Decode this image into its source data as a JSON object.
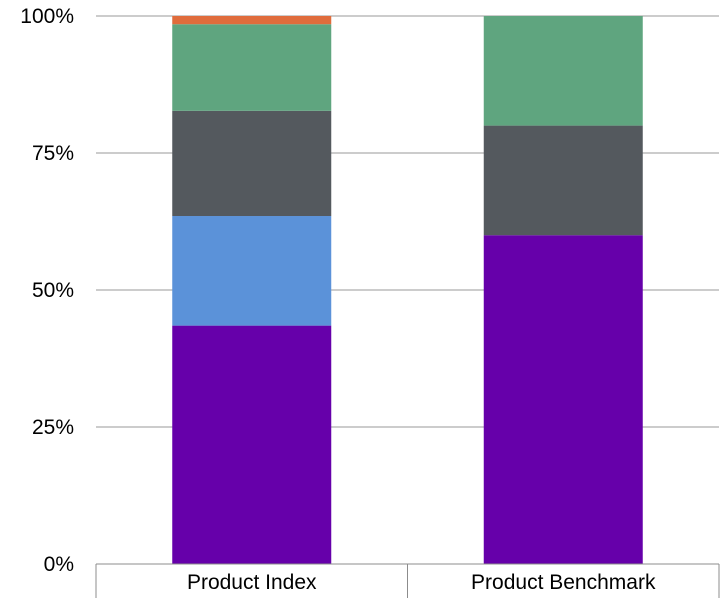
{
  "chart_data": {
    "type": "bar",
    "stacked": true,
    "categories": [
      "Product Index",
      "Product Benchmark"
    ],
    "series": [
      {
        "color": "#6600aa",
        "values": [
          43.5,
          60.0
        ]
      },
      {
        "color": "#5b92d9",
        "values": [
          20.0,
          0
        ]
      },
      {
        "color": "#54595e",
        "values": [
          19.2,
          20.0
        ]
      },
      {
        "color": "#5fa57f",
        "values": [
          15.8,
          20.0
        ]
      },
      {
        "color": "#e06c3c",
        "values": [
          1.5,
          0
        ]
      }
    ],
    "ylim": [
      0,
      100
    ],
    "yticks": [
      "0%",
      "25%",
      "50%",
      "75%",
      "100%"
    ],
    "grid": true,
    "legend": "none"
  }
}
